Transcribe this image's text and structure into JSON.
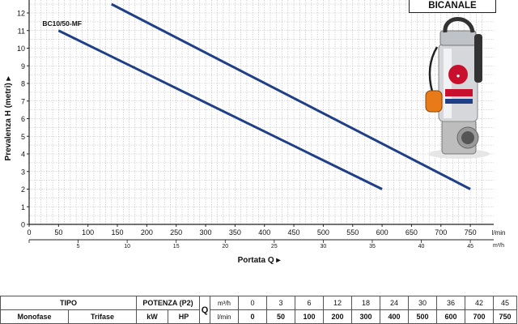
{
  "chart_data": {
    "type": "line",
    "ylabel": "Prevalenza  H  (metri)",
    "xlabel": "Portata  Q",
    "ylim": [
      0,
      12
    ],
    "yticks": [
      "0",
      "1",
      "2",
      "3",
      "4",
      "5",
      "6",
      "7",
      "8",
      "9",
      "10",
      "11",
      "12"
    ],
    "xlim_lmin": [
      0,
      775
    ],
    "xticks_lmin": [
      "0",
      "50",
      "100",
      "150",
      "200",
      "250",
      "300",
      "350",
      "400",
      "450",
      "500",
      "550",
      "600",
      "650",
      "700",
      "750"
    ],
    "xunit_lmin": "l/min",
    "xticks_m3h": [
      "0",
      "5",
      "10",
      "15",
      "20",
      "25",
      "30",
      "35",
      "40",
      "45"
    ],
    "xunit_m3h": "m³/h",
    "grid": true,
    "series": [
      {
        "name": "BC10/50-MF",
        "x": [
          50,
          600
        ],
        "y": [
          11,
          2
        ]
      },
      {
        "x": [
          140,
          750
        ],
        "y": [
          12.5,
          2
        ]
      }
    ]
  },
  "badge": "BICANALE",
  "table": {
    "tipo": "TIPO",
    "monofase": "Monofase",
    "trifase": "Trifase",
    "potenza": "POTENZA (P2)",
    "kw": "kW",
    "hp": "HP",
    "q": "Q",
    "unit_m3h": "m³/h",
    "unit_lmin": "l/min",
    "m3h_values": [
      "0",
      "3",
      "6",
      "12",
      "18",
      "24",
      "30",
      "36",
      "42",
      "45"
    ],
    "lmin_values": [
      "0",
      "50",
      "100",
      "200",
      "300",
      "400",
      "500",
      "600",
      "700",
      "750"
    ]
  },
  "colors": {
    "curve": "#1f3f86",
    "grid": "#b9b9b9",
    "axis": "#222222"
  }
}
